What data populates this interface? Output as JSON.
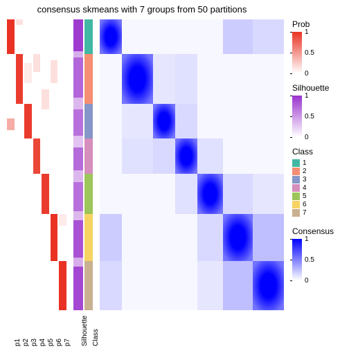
{
  "title": "consensus skmeans with 7 groups from 50 partitions",
  "colors": {
    "prob_high": "#e93223",
    "prob_low": "#ffffff",
    "sil_high": "#9a32cd",
    "sil_low": "#ffffff",
    "cons_high": "#0000ff",
    "cons_low": "#ffffff",
    "background": "#ffffff",
    "text": "#000000"
  },
  "class_colors": {
    "1": "#42b8a4",
    "2": "#f58e72",
    "3": "#8696c8",
    "4": "#d68ebd",
    "5": "#9cc55a",
    "6": "#f6d362",
    "7": "#c9b091"
  },
  "class_proportions": [
    0.12,
    0.17,
    0.12,
    0.12,
    0.14,
    0.16,
    0.17
  ],
  "prob_columns": [
    "p1",
    "p2",
    "p3",
    "p4",
    "p5",
    "p6",
    "p7"
  ],
  "track_labels": [
    "Silhouette",
    "Class"
  ],
  "prob_segments": [
    {
      "col": 0,
      "from": 0.0,
      "to": 0.12,
      "v": 1.0
    },
    {
      "col": 0,
      "from": 0.34,
      "to": 0.38,
      "v": 0.4
    },
    {
      "col": 1,
      "from": 0.12,
      "to": 0.29,
      "v": 0.95
    },
    {
      "col": 1,
      "from": 0.0,
      "to": 0.02,
      "v": 0.15
    },
    {
      "col": 2,
      "from": 0.29,
      "to": 0.41,
      "v": 0.95
    },
    {
      "col": 2,
      "from": 0.15,
      "to": 0.22,
      "v": 0.1
    },
    {
      "col": 3,
      "from": 0.41,
      "to": 0.53,
      "v": 0.9
    },
    {
      "col": 3,
      "from": 0.12,
      "to": 0.18,
      "v": 0.15
    },
    {
      "col": 4,
      "from": 0.53,
      "to": 0.67,
      "v": 0.95
    },
    {
      "col": 4,
      "from": 0.24,
      "to": 0.31,
      "v": 0.15
    },
    {
      "col": 5,
      "from": 0.67,
      "to": 0.83,
      "v": 1.0
    },
    {
      "col": 5,
      "from": 0.14,
      "to": 0.22,
      "v": 0.15
    },
    {
      "col": 6,
      "from": 0.83,
      "to": 1.0,
      "v": 1.0
    },
    {
      "col": 6,
      "from": 0.67,
      "to": 0.71,
      "v": 0.1
    }
  ],
  "sil_segments": [
    {
      "from": 0.0,
      "to": 0.11,
      "v": 0.95
    },
    {
      "from": 0.11,
      "to": 0.13,
      "v": 0.4
    },
    {
      "from": 0.13,
      "to": 0.27,
      "v": 0.75
    },
    {
      "from": 0.27,
      "to": 0.31,
      "v": 0.35
    },
    {
      "from": 0.31,
      "to": 0.4,
      "v": 0.7
    },
    {
      "from": 0.4,
      "to": 0.44,
      "v": 0.3
    },
    {
      "from": 0.44,
      "to": 0.52,
      "v": 0.72
    },
    {
      "from": 0.52,
      "to": 0.56,
      "v": 0.35
    },
    {
      "from": 0.56,
      "to": 0.66,
      "v": 0.7
    },
    {
      "from": 0.66,
      "to": 0.69,
      "v": 0.35
    },
    {
      "from": 0.69,
      "to": 0.82,
      "v": 0.85
    },
    {
      "from": 0.82,
      "to": 0.85,
      "v": 0.4
    },
    {
      "from": 0.85,
      "to": 1.0,
      "v": 0.9
    }
  ],
  "heatmap_offdiag": [
    {
      "r": 0,
      "c": 5,
      "v": 0.2
    },
    {
      "r": 5,
      "c": 0,
      "v": 0.2
    },
    {
      "r": 0,
      "c": 6,
      "v": 0.15
    },
    {
      "r": 6,
      "c": 0,
      "v": 0.15
    },
    {
      "r": 1,
      "c": 2,
      "v": 0.1
    },
    {
      "r": 2,
      "c": 1,
      "v": 0.1
    },
    {
      "r": 1,
      "c": 3,
      "v": 0.12
    },
    {
      "r": 3,
      "c": 1,
      "v": 0.12
    },
    {
      "r": 2,
      "c": 3,
      "v": 0.15
    },
    {
      "r": 3,
      "c": 2,
      "v": 0.15
    },
    {
      "r": 3,
      "c": 4,
      "v": 0.12
    },
    {
      "r": 4,
      "c": 3,
      "v": 0.12
    },
    {
      "r": 4,
      "c": 5,
      "v": 0.15
    },
    {
      "r": 5,
      "c": 4,
      "v": 0.15
    },
    {
      "r": 4,
      "c": 6,
      "v": 0.1
    },
    {
      "r": 6,
      "c": 4,
      "v": 0.1
    },
    {
      "r": 5,
      "c": 6,
      "v": 0.25
    },
    {
      "r": 6,
      "c": 5,
      "v": 0.25
    }
  ],
  "legends": {
    "prob": {
      "title": "Prob",
      "ticks": [
        {
          "p": 0,
          "l": "1"
        },
        {
          "p": 0.5,
          "l": "0.5"
        },
        {
          "p": 1,
          "l": "0"
        }
      ]
    },
    "sil": {
      "title": "Silhouette",
      "ticks": [
        {
          "p": 0,
          "l": "1"
        },
        {
          "p": 0.5,
          "l": "0.5"
        },
        {
          "p": 1,
          "l": "0"
        }
      ]
    },
    "class": {
      "title": "Class",
      "items": [
        "1",
        "2",
        "3",
        "4",
        "5",
        "6",
        "7"
      ]
    },
    "cons": {
      "title": "Consensus",
      "ticks": [
        {
          "p": 0,
          "l": "1"
        },
        {
          "p": 0.5,
          "l": "0.5"
        },
        {
          "p": 1,
          "l": "0"
        }
      ]
    }
  }
}
